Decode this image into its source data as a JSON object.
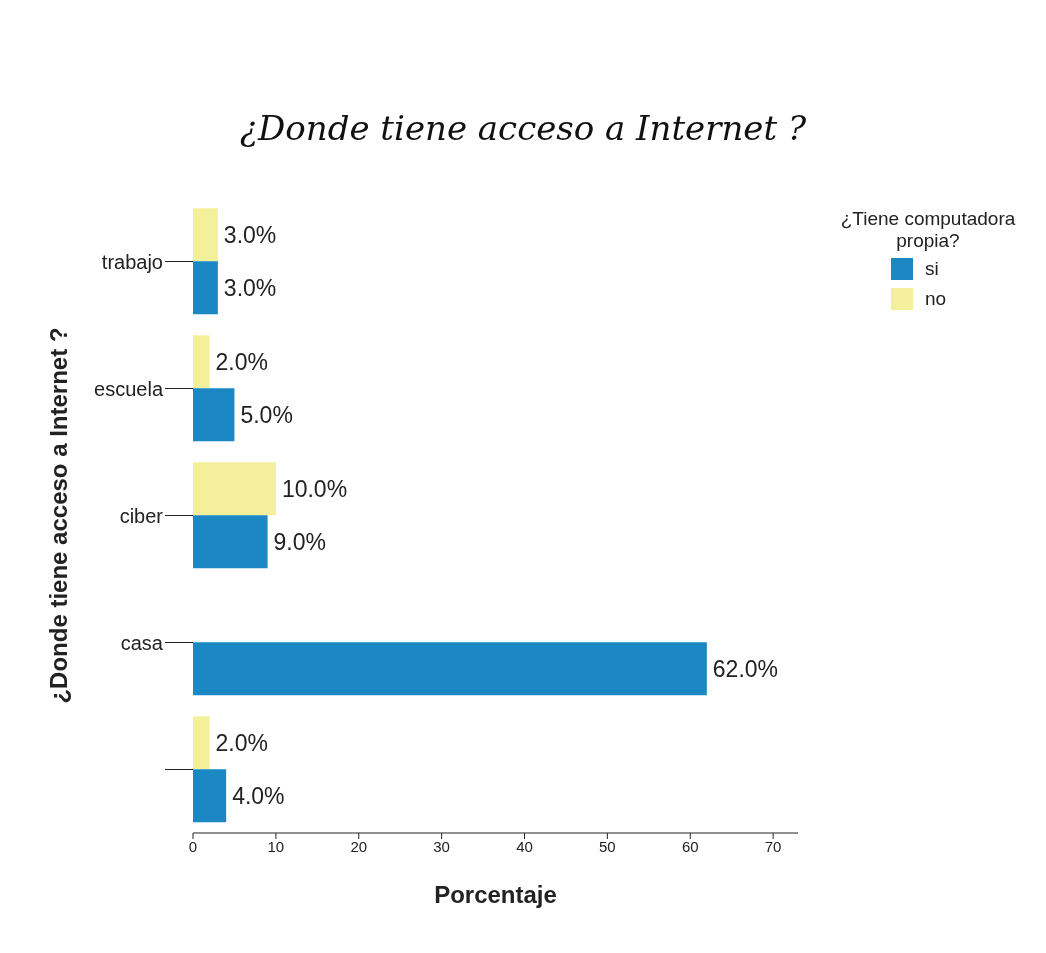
{
  "chart_data": {
    "type": "bar",
    "orientation": "horizontal",
    "title": "¿Donde tiene acceso a Internet ?",
    "xlabel": "Porcentaje",
    "ylabel": "¿Donde tiene acceso a Internet ?",
    "legend_title": "¿Tiene computadora propia?",
    "categories": [
      "trabajo",
      "escuela",
      "ciber",
      "casa",
      null
    ],
    "series": [
      {
        "name": "si",
        "color": "#1b88c3",
        "values": [
          3,
          5,
          9,
          62,
          4
        ],
        "value_labels": [
          "3.0%",
          "5.0%",
          "9.0%",
          "62.0%",
          "4.0%"
        ]
      },
      {
        "name": "no",
        "color": "#f3ef9b",
        "values": [
          3,
          2,
          10,
          null,
          2
        ],
        "value_labels": [
          "3.0%",
          "2.0%",
          "10.0%",
          null,
          "2.0%"
        ]
      }
    ],
    "xlim": [
      0,
      73
    ],
    "xticks": [
      0,
      10,
      20,
      30,
      40,
      50,
      60,
      70
    ],
    "grid": false,
    "legend": "top right"
  }
}
